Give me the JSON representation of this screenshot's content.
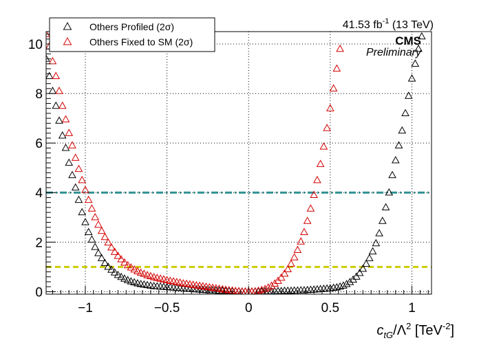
{
  "header": {
    "lumi_value": "41.53 fb",
    "lumi_exp": "-1",
    "lumi_energy": " (13 TeV)",
    "cms": "CMS",
    "preliminary": "Preliminary"
  },
  "axis_title": {
    "var": "c",
    "var_sub": "tG",
    "div": "/Λ",
    "div_sup": "2",
    "unit_open": " [TeV",
    "unit_sup": "-2",
    "unit_close": "]"
  },
  "colors": {
    "profiled": "#000000",
    "fixed": "#d40000",
    "line_2sigma": "#2f8f8f",
    "line_1sigma": "#cccc00"
  },
  "chart_data": {
    "type": "scatter",
    "title": "",
    "xlabel": "c_tG/Λ^2 [TeV^-2]",
    "ylabel": "",
    "xlim": [
      -1.24,
      1.12
    ],
    "ylim": [
      -0.1,
      10.5
    ],
    "grid": true,
    "legend_position": "top-left",
    "x_ticks": [
      -1,
      -0.5,
      0,
      0.5,
      1
    ],
    "x_tick_labels": [
      "−1",
      "−0.5",
      "0",
      "0.5",
      "1"
    ],
    "y_ticks": [
      0,
      2,
      4,
      6,
      8,
      10
    ],
    "y_tick_labels": [
      "0",
      "2",
      "4",
      "6",
      "8",
      "10"
    ],
    "reference_lines": [
      {
        "y": 4,
        "style": "dash-dot",
        "color": "#2f8f8f"
      },
      {
        "y": 1,
        "style": "dashed",
        "color": "#cccc00"
      }
    ],
    "legend": [
      {
        "label": "Others Profiled (2σ)",
        "color": "#000000"
      },
      {
        "label": "Others Fixed to SM (2σ)",
        "color": "#d40000"
      }
    ],
    "series": [
      {
        "name": "Others Profiled (2σ)",
        "color": "#000000",
        "points": [
          [
            -1.24,
            9.4
          ],
          [
            -1.22,
            8.7
          ],
          [
            -1.2,
            8.1
          ],
          [
            -1.18,
            7.5
          ],
          [
            -1.16,
            6.9
          ],
          [
            -1.14,
            6.3
          ],
          [
            -1.12,
            5.8
          ],
          [
            -1.1,
            5.2
          ],
          [
            -1.08,
            4.7
          ],
          [
            -1.06,
            4.2
          ],
          [
            -1.04,
            3.7
          ],
          [
            -1.02,
            3.2
          ],
          [
            -1.0,
            2.8
          ],
          [
            -0.98,
            2.4
          ],
          [
            -0.96,
            2.1
          ],
          [
            -0.94,
            1.8
          ],
          [
            -0.92,
            1.55
          ],
          [
            -0.9,
            1.35
          ],
          [
            -0.88,
            1.15
          ],
          [
            -0.86,
            1.0
          ],
          [
            -0.84,
            0.88
          ],
          [
            -0.82,
            0.77
          ],
          [
            -0.8,
            0.67
          ],
          [
            -0.78,
            0.59
          ],
          [
            -0.76,
            0.52
          ],
          [
            -0.74,
            0.46
          ],
          [
            -0.72,
            0.41
          ],
          [
            -0.7,
            0.37
          ],
          [
            -0.68,
            0.33
          ],
          [
            -0.66,
            0.3
          ],
          [
            -0.64,
            0.28
          ],
          [
            -0.62,
            0.26
          ],
          [
            -0.6,
            0.24
          ],
          [
            -0.58,
            0.22
          ],
          [
            -0.56,
            0.21
          ],
          [
            -0.54,
            0.2
          ],
          [
            -0.52,
            0.19
          ],
          [
            -0.5,
            0.18
          ],
          [
            -0.48,
            0.17
          ],
          [
            -0.46,
            0.16
          ],
          [
            -0.44,
            0.15
          ],
          [
            -0.42,
            0.14
          ],
          [
            -0.4,
            0.13
          ],
          [
            -0.38,
            0.12
          ],
          [
            -0.36,
            0.11
          ],
          [
            -0.34,
            0.1
          ],
          [
            -0.32,
            0.09
          ],
          [
            -0.3,
            0.08
          ],
          [
            -0.28,
            0.07
          ],
          [
            -0.26,
            0.06
          ],
          [
            -0.24,
            0.05
          ],
          [
            -0.22,
            0.05
          ],
          [
            -0.2,
            0.04
          ],
          [
            -0.18,
            0.03
          ],
          [
            -0.16,
            0.03
          ],
          [
            -0.14,
            0.02
          ],
          [
            -0.12,
            0.02
          ],
          [
            -0.1,
            0.01
          ],
          [
            -0.08,
            0.01
          ],
          [
            -0.06,
            0.01
          ],
          [
            -0.04,
            0.0
          ],
          [
            -0.02,
            0.0
          ],
          [
            0.0,
            0.0
          ],
          [
            0.02,
            0.0
          ],
          [
            0.04,
            0.0
          ],
          [
            0.06,
            0.0
          ],
          [
            0.08,
            0.0
          ],
          [
            0.1,
            0.01
          ],
          [
            0.12,
            0.01
          ],
          [
            0.14,
            0.01
          ],
          [
            0.16,
            0.01
          ],
          [
            0.18,
            0.02
          ],
          [
            0.2,
            0.02
          ],
          [
            0.22,
            0.03
          ],
          [
            0.24,
            0.03
          ],
          [
            0.26,
            0.03
          ],
          [
            0.28,
            0.04
          ],
          [
            0.3,
            0.04
          ],
          [
            0.32,
            0.05
          ],
          [
            0.34,
            0.05
          ],
          [
            0.36,
            0.06
          ],
          [
            0.38,
            0.07
          ],
          [
            0.4,
            0.08
          ],
          [
            0.42,
            0.09
          ],
          [
            0.44,
            0.1
          ],
          [
            0.46,
            0.11
          ],
          [
            0.48,
            0.12
          ],
          [
            0.5,
            0.13
          ],
          [
            0.52,
            0.15
          ],
          [
            0.54,
            0.17
          ],
          [
            0.56,
            0.2
          ],
          [
            0.58,
            0.24
          ],
          [
            0.6,
            0.3
          ],
          [
            0.62,
            0.38
          ],
          [
            0.64,
            0.48
          ],
          [
            0.66,
            0.6
          ],
          [
            0.68,
            0.75
          ],
          [
            0.7,
            0.92
          ],
          [
            0.72,
            1.12
          ],
          [
            0.74,
            1.35
          ],
          [
            0.76,
            1.62
          ],
          [
            0.78,
            1.95
          ],
          [
            0.8,
            2.35
          ],
          [
            0.82,
            2.85
          ],
          [
            0.84,
            3.4
          ],
          [
            0.86,
            4.0
          ],
          [
            0.88,
            4.7
          ],
          [
            0.9,
            5.3
          ],
          [
            0.92,
            5.9
          ],
          [
            0.94,
            6.5
          ],
          [
            0.96,
            7.2
          ],
          [
            0.98,
            7.9
          ],
          [
            1.0,
            8.6
          ],
          [
            1.02,
            9.2
          ],
          [
            1.04,
            9.8
          ],
          [
            1.06,
            10.3
          ]
        ]
      },
      {
        "name": "Others Fixed to SM (2σ)",
        "color": "#d40000",
        "points": [
          [
            -1.24,
            10.4
          ],
          [
            -1.22,
            9.9
          ],
          [
            -1.2,
            9.3
          ],
          [
            -1.18,
            8.7
          ],
          [
            -1.16,
            8.1
          ],
          [
            -1.14,
            7.5
          ],
          [
            -1.12,
            6.95
          ],
          [
            -1.1,
            6.4
          ],
          [
            -1.08,
            5.9
          ],
          [
            -1.06,
            5.4
          ],
          [
            -1.04,
            4.95
          ],
          [
            -1.02,
            4.5
          ],
          [
            -1.0,
            4.1
          ],
          [
            -0.98,
            3.7
          ],
          [
            -0.96,
            3.35
          ],
          [
            -0.94,
            3.0
          ],
          [
            -0.92,
            2.7
          ],
          [
            -0.9,
            2.45
          ],
          [
            -0.88,
            2.2
          ],
          [
            -0.86,
            1.98
          ],
          [
            -0.84,
            1.78
          ],
          [
            -0.82,
            1.6
          ],
          [
            -0.8,
            1.44
          ],
          [
            -0.78,
            1.3
          ],
          [
            -0.76,
            1.17
          ],
          [
            -0.74,
            1.06
          ],
          [
            -0.72,
            0.97
          ],
          [
            -0.7,
            0.89
          ],
          [
            -0.68,
            0.82
          ],
          [
            -0.66,
            0.76
          ],
          [
            -0.64,
            0.71
          ],
          [
            -0.62,
            0.66
          ],
          [
            -0.6,
            0.62
          ],
          [
            -0.58,
            0.58
          ],
          [
            -0.56,
            0.55
          ],
          [
            -0.54,
            0.52
          ],
          [
            -0.52,
            0.49
          ],
          [
            -0.5,
            0.46
          ],
          [
            -0.48,
            0.43
          ],
          [
            -0.46,
            0.41
          ],
          [
            -0.44,
            0.38
          ],
          [
            -0.42,
            0.36
          ],
          [
            -0.4,
            0.33
          ],
          [
            -0.38,
            0.31
          ],
          [
            -0.36,
            0.29
          ],
          [
            -0.34,
            0.27
          ],
          [
            -0.32,
            0.25
          ],
          [
            -0.3,
            0.23
          ],
          [
            -0.28,
            0.21
          ],
          [
            -0.26,
            0.19
          ],
          [
            -0.24,
            0.17
          ],
          [
            -0.22,
            0.15
          ],
          [
            -0.2,
            0.13
          ],
          [
            -0.18,
            0.11
          ],
          [
            -0.16,
            0.09
          ],
          [
            -0.14,
            0.07
          ],
          [
            -0.12,
            0.05
          ],
          [
            -0.1,
            0.04
          ],
          [
            -0.08,
            0.02
          ],
          [
            -0.06,
            0.01
          ],
          [
            -0.04,
            0.0
          ],
          [
            -0.02,
            0.0
          ],
          [
            0.0,
            0.0
          ],
          [
            0.02,
            0.0
          ],
          [
            0.04,
            0.01
          ],
          [
            0.06,
            0.03
          ],
          [
            0.08,
            0.06
          ],
          [
            0.1,
            0.1
          ],
          [
            0.12,
            0.16
          ],
          [
            0.14,
            0.23
          ],
          [
            0.16,
            0.32
          ],
          [
            0.18,
            0.43
          ],
          [
            0.2,
            0.56
          ],
          [
            0.22,
            0.72
          ],
          [
            0.24,
            0.9
          ],
          [
            0.26,
            1.12
          ],
          [
            0.28,
            1.38
          ],
          [
            0.3,
            1.68
          ],
          [
            0.32,
            2.02
          ],
          [
            0.34,
            2.4
          ],
          [
            0.36,
            2.85
          ],
          [
            0.38,
            3.35
          ],
          [
            0.4,
            3.9
          ],
          [
            0.42,
            4.5
          ],
          [
            0.44,
            5.15
          ],
          [
            0.46,
            5.85
          ],
          [
            0.48,
            6.6
          ],
          [
            0.5,
            7.4
          ],
          [
            0.52,
            8.2
          ],
          [
            0.54,
            9.0
          ],
          [
            0.56,
            9.8
          ]
        ]
      }
    ]
  }
}
